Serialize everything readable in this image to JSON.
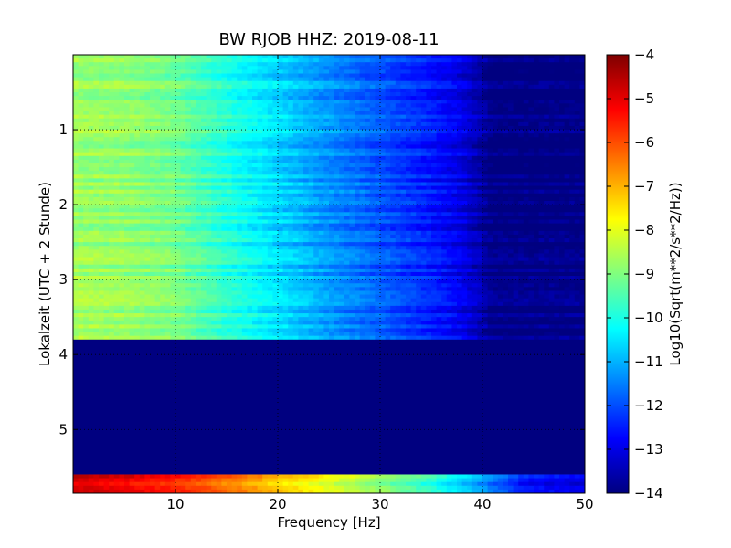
{
  "chart_data": {
    "type": "heatmap",
    "title": "BW RJOB HHZ: 2019-08-11",
    "xlabel": "Frequency [Hz]",
    "ylabel": "Lokalzeit (UTC + 2 Stunde)",
    "xlim": [
      0,
      50
    ],
    "ylim": [
      5.85,
      0
    ],
    "xticks": [
      "10",
      "20",
      "30",
      "40",
      "50"
    ],
    "xtick_values": [
      10,
      20,
      30,
      40,
      50
    ],
    "yticks": [
      "1",
      "2",
      "3",
      "4",
      "5"
    ],
    "ytick_values": [
      1,
      2,
      3,
      4,
      5
    ],
    "grid": true,
    "colormap": "jet",
    "colorbar": {
      "label": "Log10(Sqrt(m**2/s**2/Hz))",
      "range": [
        -14,
        -4
      ],
      "ticks": [
        "−4",
        "−5",
        "−6",
        "−7",
        "−8",
        "−9",
        "−10",
        "−11",
        "−12",
        "−13",
        "−14"
      ],
      "tick_values": [
        -4,
        -5,
        -6,
        -7,
        -8,
        -9,
        -10,
        -11,
        -12,
        -13,
        -14
      ]
    },
    "regions": [
      {
        "time_range": [
          0,
          3.8
        ],
        "kind": "spectrum",
        "freq_profile": [
          [
            0,
            -8.7
          ],
          [
            5,
            -8.8
          ],
          [
            10,
            -9.1
          ],
          [
            15,
            -9.9
          ],
          [
            20,
            -10.6
          ],
          [
            25,
            -11.3
          ],
          [
            30,
            -11.9
          ],
          [
            35,
            -12.5
          ],
          [
            38,
            -13.0
          ],
          [
            40,
            -13.6
          ],
          [
            41,
            -14.0
          ],
          [
            50,
            -14.0
          ]
        ]
      },
      {
        "time_range": [
          3.8,
          5.6
        ],
        "kind": "no-data",
        "value": -14
      },
      {
        "time_range": [
          5.6,
          5.85
        ],
        "kind": "spectrum",
        "freq_profile": [
          [
            0,
            -4.8
          ],
          [
            5,
            -5.1
          ],
          [
            10,
            -5.6
          ],
          [
            15,
            -6.3
          ],
          [
            20,
            -7.2
          ],
          [
            25,
            -8.0
          ],
          [
            30,
            -8.8
          ],
          [
            35,
            -9.8
          ],
          [
            40,
            -11.2
          ],
          [
            44,
            -12.6
          ],
          [
            50,
            -13.0
          ]
        ]
      }
    ]
  }
}
